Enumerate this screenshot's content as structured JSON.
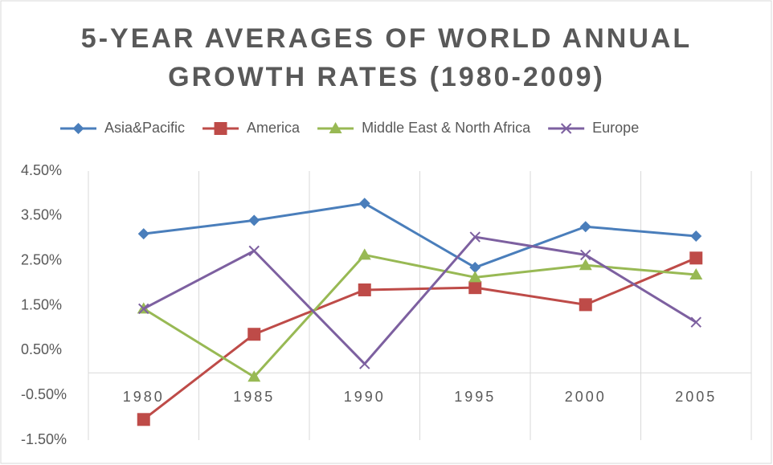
{
  "chart_data": {
    "type": "line",
    "title": "5-YEAR AVERAGES OF WORLD ANNUAL GROWTH RATES (1980-2009)",
    "categories": [
      "1980",
      "1985",
      "1990",
      "1995",
      "2000",
      "2005"
    ],
    "series": [
      {
        "name": "Asia&Pacific",
        "color": "#4a7ebb",
        "marker": "diamond",
        "values": [
          3.1,
          3.4,
          3.78,
          2.35,
          3.26,
          3.05
        ]
      },
      {
        "name": "America",
        "color": "#be4b48",
        "marker": "square",
        "values": [
          -1.04,
          0.86,
          1.85,
          1.9,
          1.52,
          2.56
        ]
      },
      {
        "name": "Middle East & North Africa",
        "color": "#98b954",
        "marker": "triangle",
        "values": [
          1.43,
          -0.09,
          2.63,
          2.13,
          2.4,
          2.19
        ]
      },
      {
        "name": "Europe",
        "color": "#7d60a0",
        "marker": "x",
        "values": [
          1.43,
          2.72,
          0.2,
          3.03,
          2.63,
          1.13
        ]
      }
    ],
    "ylim": [
      -1.5,
      4.5
    ],
    "yticks": [
      {
        "value": -1.5,
        "label": "-1.50%"
      },
      {
        "value": -0.5,
        "label": "-0.50%"
      },
      {
        "value": 0.5,
        "label": "0.50%"
      },
      {
        "value": 1.5,
        "label": "1.50%"
      },
      {
        "value": 2.5,
        "label": "2.50%"
      },
      {
        "value": 3.5,
        "label": "3.50%"
      },
      {
        "value": 4.5,
        "label": "4.50%"
      }
    ],
    "legend": "top"
  }
}
